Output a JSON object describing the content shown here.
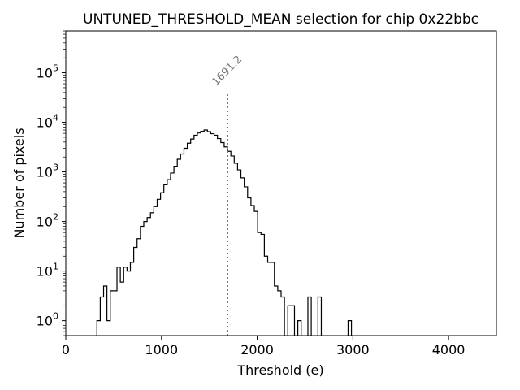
{
  "colors": {
    "background": "#ffffff",
    "axes": "#000000",
    "histogram": "#000000",
    "mean_line": "#777777",
    "mean_label": "#777777"
  },
  "chart_data": {
    "type": "histogram",
    "title": "UNTUNED_THRESHOLD_MEAN selection for chip 0x22bbc",
    "xlabel": "Threshold (e)",
    "ylabel": "Number of pixels",
    "xlim": [
      0,
      4500
    ],
    "ylim": [
      0.5,
      700000
    ],
    "yscale": "log",
    "x_ticks": [
      {
        "value": 0,
        "label": "0"
      },
      {
        "value": 1000,
        "label": "1000"
      },
      {
        "value": 2000,
        "label": "2000"
      },
      {
        "value": 3000,
        "label": "3000"
      },
      {
        "value": 4000,
        "label": "4000"
      }
    ],
    "y_ticks": [
      {
        "value": 1,
        "base": "10",
        "exp": "0"
      },
      {
        "value": 10,
        "base": "10",
        "exp": "1"
      },
      {
        "value": 100,
        "base": "10",
        "exp": "2"
      },
      {
        "value": 1000,
        "base": "10",
        "exp": "3"
      },
      {
        "value": 10000,
        "base": "10",
        "exp": "4"
      },
      {
        "value": 100000,
        "base": "10",
        "exp": "5"
      }
    ],
    "bin_width": 35,
    "bin_start": 325,
    "counts": [
      1,
      3,
      5,
      1,
      4,
      4,
      12,
      6,
      12,
      10,
      15,
      30,
      45,
      80,
      100,
      120,
      150,
      200,
      280,
      380,
      550,
      700,
      950,
      1300,
      1800,
      2300,
      3000,
      3800,
      4600,
      5500,
      6100,
      6600,
      7000,
      6500,
      5900,
      5500,
      4700,
      3900,
      3200,
      2600,
      2100,
      1500,
      1100,
      760,
      500,
      300,
      210,
      160,
      60,
      55,
      20,
      15,
      15,
      5,
      4,
      3,
      0,
      2,
      2,
      0,
      1,
      0,
      0,
      3,
      0,
      0,
      3,
      0,
      0,
      0,
      0,
      0,
      0,
      0,
      0,
      1
    ],
    "mean": {
      "value": 1691.2,
      "label": "1691.2",
      "line_top_count": 40000
    }
  }
}
